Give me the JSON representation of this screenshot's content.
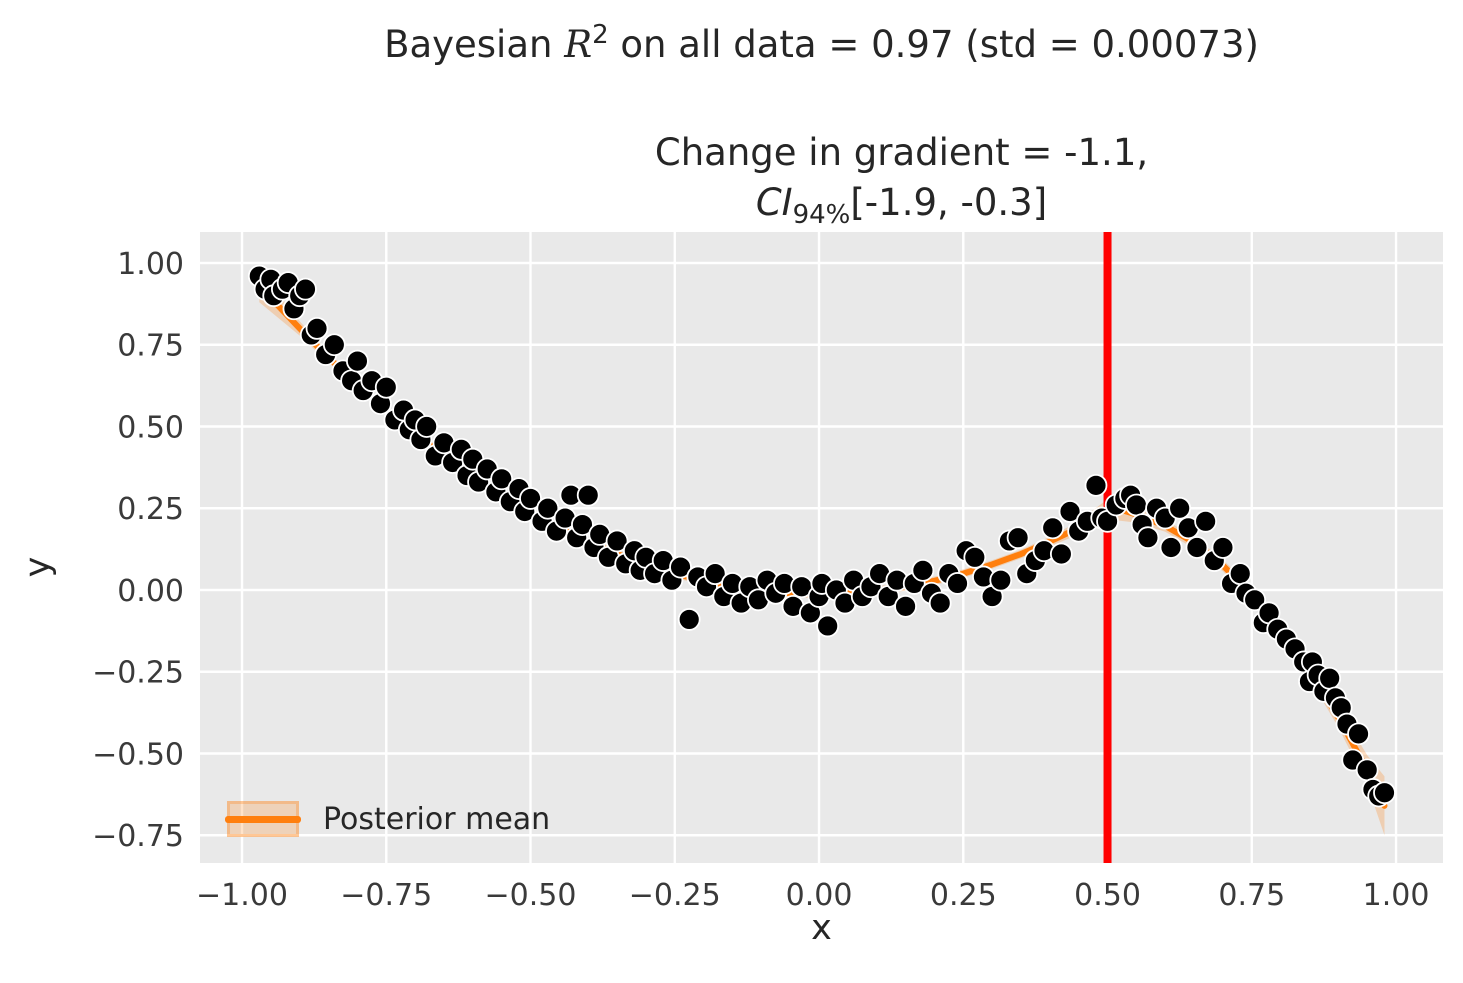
{
  "figure": {
    "suptitle": {
      "pre": "Bayesian ",
      "var": "R",
      "sup": "2",
      "post": " on all data = 0.97 (std = 0.00073)"
    },
    "axes_title": {
      "line1": "Change in gradient = -1.1,",
      "ci_var": "CI",
      "ci_sub": "94%",
      "ci_rest": "[-1.9, -0.3]"
    },
    "xlabel": "x",
    "ylabel": "y"
  },
  "legend": {
    "label": "Posterior mean"
  },
  "colors": {
    "axes_background": "#e9e9e9",
    "grid": "#ffffff",
    "scatter_fill": "#000000",
    "scatter_edge": "#ffffff",
    "posterior_mean_line": "#ff7f0e",
    "credible_band": "#ff7f0e",
    "vline": "#ff0000",
    "text": "#262626",
    "tick_text": "#3a3a3a"
  },
  "chart_data": {
    "type": "scatter",
    "suptitle": "Bayesian R^2 on all data = 0.97 (std = 0.00073)",
    "title": "Change in gradient = -1.1, CI_94% [-1.9, -0.3]",
    "xlabel": "x",
    "ylabel": "y",
    "xlim": [
      -1.0728,
      1.0814
    ],
    "ylim": [
      -0.8349,
      1.0948
    ],
    "grid": true,
    "legend_position": "lower left",
    "xticks": {
      "values": [
        -1.0,
        -0.75,
        -0.5,
        -0.25,
        0.0,
        0.25,
        0.5,
        0.75,
        1.0
      ],
      "labels": [
        "−1.00",
        "−0.75",
        "−0.50",
        "−0.25",
        "0.00",
        "0.25",
        "0.50",
        "0.75",
        "1.00"
      ]
    },
    "yticks": {
      "values": [
        1.0,
        0.75,
        0.5,
        0.25,
        0.0,
        -0.25,
        -0.5,
        -0.75
      ],
      "labels": [
        "1.00",
        "0.75",
        "0.50",
        "0.25",
        "0.00",
        "−0.25",
        "−0.50",
        "−0.75"
      ]
    },
    "vline": {
      "x": 0.5,
      "color": "#ff0000",
      "width": 8
    },
    "annotations": {
      "bayesian_r2": 0.97,
      "r2_std": 0.00073,
      "change_in_gradient": -1.1,
      "ci_94": [
        -1.9,
        -0.3
      ]
    },
    "series": [
      {
        "name": "observations",
        "type": "scatter",
        "points": [
          [
            -0.97,
            0.96
          ],
          [
            -0.96,
            0.92
          ],
          [
            -0.95,
            0.95
          ],
          [
            -0.945,
            0.9
          ],
          [
            -0.93,
            0.92
          ],
          [
            -0.92,
            0.94
          ],
          [
            -0.91,
            0.86
          ],
          [
            -0.9,
            0.9
          ],
          [
            -0.89,
            0.92
          ],
          [
            -0.88,
            0.78
          ],
          [
            -0.87,
            0.8
          ],
          [
            -0.855,
            0.72
          ],
          [
            -0.84,
            0.75
          ],
          [
            -0.825,
            0.67
          ],
          [
            -0.81,
            0.64
          ],
          [
            -0.8,
            0.7
          ],
          [
            -0.79,
            0.61
          ],
          [
            -0.775,
            0.64
          ],
          [
            -0.76,
            0.57
          ],
          [
            -0.75,
            0.62
          ],
          [
            -0.735,
            0.52
          ],
          [
            -0.72,
            0.55
          ],
          [
            -0.71,
            0.49
          ],
          [
            -0.7,
            0.52
          ],
          [
            -0.69,
            0.46
          ],
          [
            -0.68,
            0.5
          ],
          [
            -0.665,
            0.41
          ],
          [
            -0.65,
            0.45
          ],
          [
            -0.635,
            0.39
          ],
          [
            -0.62,
            0.43
          ],
          [
            -0.61,
            0.35
          ],
          [
            -0.6,
            0.4
          ],
          [
            -0.59,
            0.33
          ],
          [
            -0.575,
            0.37
          ],
          [
            -0.56,
            0.3
          ],
          [
            -0.55,
            0.34
          ],
          [
            -0.535,
            0.27
          ],
          [
            -0.52,
            0.31
          ],
          [
            -0.51,
            0.24
          ],
          [
            -0.5,
            0.28
          ],
          [
            -0.48,
            0.21
          ],
          [
            -0.47,
            0.25
          ],
          [
            -0.455,
            0.18
          ],
          [
            -0.44,
            0.22
          ],
          [
            -0.43,
            0.29
          ],
          [
            -0.42,
            0.16
          ],
          [
            -0.41,
            0.2
          ],
          [
            -0.4,
            0.29
          ],
          [
            -0.39,
            0.13
          ],
          [
            -0.38,
            0.17
          ],
          [
            -0.365,
            0.1
          ],
          [
            -0.35,
            0.15
          ],
          [
            -0.335,
            0.08
          ],
          [
            -0.32,
            0.12
          ],
          [
            -0.31,
            0.06
          ],
          [
            -0.3,
            0.1
          ],
          [
            -0.285,
            0.05
          ],
          [
            -0.27,
            0.09
          ],
          [
            -0.255,
            0.03
          ],
          [
            -0.24,
            0.07
          ],
          [
            -0.225,
            -0.09
          ],
          [
            -0.21,
            0.04
          ],
          [
            -0.195,
            0.01
          ],
          [
            -0.18,
            0.05
          ],
          [
            -0.165,
            -0.02
          ],
          [
            -0.15,
            0.02
          ],
          [
            -0.135,
            -0.04
          ],
          [
            -0.12,
            0.01
          ],
          [
            -0.105,
            -0.03
          ],
          [
            -0.09,
            0.03
          ],
          [
            -0.075,
            -0.01
          ],
          [
            -0.06,
            0.02
          ],
          [
            -0.045,
            -0.05
          ],
          [
            -0.03,
            0.01
          ],
          [
            -0.015,
            -0.07
          ],
          [
            0.0,
            -0.02
          ],
          [
            0.005,
            0.02
          ],
          [
            0.015,
            -0.11
          ],
          [
            0.03,
            0.0
          ],
          [
            0.045,
            -0.04
          ],
          [
            0.06,
            0.03
          ],
          [
            0.075,
            -0.02
          ],
          [
            0.09,
            0.01
          ],
          [
            0.105,
            0.05
          ],
          [
            0.12,
            -0.02
          ],
          [
            0.135,
            0.03
          ],
          [
            0.15,
            -0.05
          ],
          [
            0.165,
            0.02
          ],
          [
            0.18,
            0.06
          ],
          [
            0.195,
            -0.01
          ],
          [
            0.21,
            -0.04
          ],
          [
            0.225,
            0.05
          ],
          [
            0.24,
            0.02
          ],
          [
            0.255,
            0.12
          ],
          [
            0.27,
            0.1
          ],
          [
            0.285,
            0.04
          ],
          [
            0.3,
            -0.02
          ],
          [
            0.315,
            0.03
          ],
          [
            0.33,
            0.15
          ],
          [
            0.345,
            0.16
          ],
          [
            0.36,
            0.05
          ],
          [
            0.375,
            0.09
          ],
          [
            0.39,
            0.12
          ],
          [
            0.405,
            0.19
          ],
          [
            0.42,
            0.11
          ],
          [
            0.435,
            0.24
          ],
          [
            0.45,
            0.18
          ],
          [
            0.465,
            0.21
          ],
          [
            0.48,
            0.32
          ],
          [
            0.49,
            0.22
          ],
          [
            0.5,
            0.21
          ],
          [
            0.515,
            0.26
          ],
          [
            0.53,
            0.28
          ],
          [
            0.54,
            0.29
          ],
          [
            0.55,
            0.26
          ],
          [
            0.56,
            0.2
          ],
          [
            0.57,
            0.16
          ],
          [
            0.585,
            0.25
          ],
          [
            0.6,
            0.22
          ],
          [
            0.61,
            0.13
          ],
          [
            0.625,
            0.25
          ],
          [
            0.64,
            0.19
          ],
          [
            0.655,
            0.13
          ],
          [
            0.67,
            0.21
          ],
          [
            0.685,
            0.09
          ],
          [
            0.7,
            0.13
          ],
          [
            0.715,
            0.02
          ],
          [
            0.73,
            0.05
          ],
          [
            0.74,
            -0.01
          ],
          [
            0.755,
            -0.03
          ],
          [
            0.77,
            -0.1
          ],
          [
            0.78,
            -0.07
          ],
          [
            0.795,
            -0.12
          ],
          [
            0.81,
            -0.15
          ],
          [
            0.825,
            -0.18
          ],
          [
            0.84,
            -0.22
          ],
          [
            0.85,
            -0.28
          ],
          [
            0.855,
            -0.22
          ],
          [
            0.865,
            -0.26
          ],
          [
            0.875,
            -0.31
          ],
          [
            0.885,
            -0.27
          ],
          [
            0.895,
            -0.33
          ],
          [
            0.905,
            -0.36
          ],
          [
            0.915,
            -0.41
          ],
          [
            0.925,
            -0.52
          ],
          [
            0.935,
            -0.44
          ],
          [
            0.95,
            -0.55
          ],
          [
            0.96,
            -0.61
          ],
          [
            0.97,
            -0.63
          ],
          [
            0.98,
            -0.62
          ]
        ]
      },
      {
        "name": "Posterior mean",
        "type": "line",
        "x": [
          -0.97,
          -0.9,
          -0.85,
          -0.8,
          -0.75,
          -0.7,
          -0.65,
          -0.6,
          -0.55,
          -0.5,
          -0.45,
          -0.4,
          -0.35,
          -0.3,
          -0.25,
          -0.2,
          -0.15,
          -0.1,
          -0.05,
          0.0,
          0.05,
          0.1,
          0.15,
          0.2,
          0.25,
          0.3,
          0.35,
          0.4,
          0.45,
          0.5,
          0.52,
          0.55,
          0.6,
          0.65,
          0.7,
          0.75,
          0.8,
          0.85,
          0.9,
          0.95,
          0.98
        ],
        "y": [
          0.93,
          0.8,
          0.71,
          0.63,
          0.55,
          0.48,
          0.41,
          0.35,
          0.29,
          0.238,
          0.19,
          0.148,
          0.11,
          0.078,
          0.05,
          0.028,
          0.011,
          -0.002,
          -0.01,
          -0.012,
          -0.01,
          -0.002,
          0.011,
          0.028,
          0.05,
          0.078,
          0.11,
          0.148,
          0.19,
          0.243,
          0.247,
          0.231,
          0.196,
          0.145,
          0.075,
          -0.013,
          -0.12,
          -0.245,
          -0.39,
          -0.55,
          -0.66
        ],
        "ci_halfwidth": [
          0.05,
          0.022,
          0.015,
          0.013,
          0.013,
          0.013,
          0.013,
          0.013,
          0.013,
          0.013,
          0.013,
          0.013,
          0.013,
          0.013,
          0.013,
          0.013,
          0.013,
          0.013,
          0.013,
          0.013,
          0.013,
          0.013,
          0.013,
          0.013,
          0.013,
          0.013,
          0.013,
          0.015,
          0.02,
          0.035,
          0.035,
          0.025,
          0.018,
          0.018,
          0.018,
          0.02,
          0.022,
          0.025,
          0.03,
          0.045,
          0.09
        ]
      }
    ]
  }
}
